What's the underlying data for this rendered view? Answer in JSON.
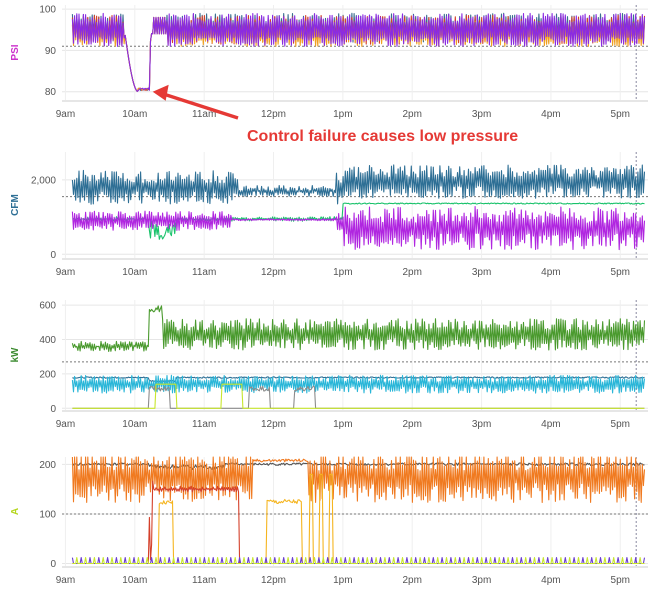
{
  "chart_data": [
    {
      "type": "line",
      "ylabel": "PSI",
      "ylabel_color": "#cc33cc",
      "ylim": [
        78,
        101
      ],
      "yticks": [
        "80",
        "90",
        "100"
      ],
      "ytick_values": [
        80,
        90,
        100
      ],
      "reference_line": 91,
      "xlim": [
        8.95,
        17.4
      ],
      "xticks": [
        "9am",
        "10am",
        "11am",
        "12pm",
        "1pm",
        "2pm",
        "3pm",
        "4pm",
        "5pm"
      ],
      "xtick_values": [
        9,
        10,
        11,
        12,
        13,
        14,
        15,
        16,
        17
      ],
      "annotation": "Control failure causes low pressure",
      "annotation_points_to": {
        "x": 10.2,
        "y": 80
      },
      "series": [
        {
          "color": "#3b6e8f",
          "kind": "psi",
          "base": 95.5,
          "amp": 3.5,
          "seed": 11
        },
        {
          "color": "#d4402a",
          "kind": "psi",
          "base": 95,
          "amp": 3.5,
          "seed": 12
        },
        {
          "color": "#f0a020",
          "kind": "psi",
          "base": 94,
          "amp": 3,
          "seed": 13
        },
        {
          "color": "#8a2be2",
          "kind": "psi",
          "base": 95,
          "amp": 4,
          "seed": 14
        }
      ]
    },
    {
      "type": "line",
      "ylabel": "CFM",
      "ylabel_color": "#2e6f95",
      "ylim": [
        -100,
        2750
      ],
      "yticks": [
        "0",
        "2,000"
      ],
      "ytick_values": [
        0,
        2000
      ],
      "reference_line": 1550,
      "xlim": [
        8.95,
        17.4
      ],
      "xticks": [
        "9am",
        "10am",
        "11am",
        "12pm",
        "1pm",
        "2pm",
        "3pm",
        "4pm",
        "5pm"
      ],
      "xtick_values": [
        9,
        10,
        11,
        12,
        13,
        14,
        15,
        16,
        17
      ],
      "series": [
        {
          "color": "#2e6f95",
          "kind": "cfm_blue",
          "seed": 21
        },
        {
          "color": "#19c26b",
          "kind": "cfm_green",
          "seed": 22
        },
        {
          "color": "#b026e0",
          "kind": "cfm_purple",
          "seed": 23
        }
      ]
    },
    {
      "type": "line",
      "ylabel": "kW",
      "ylabel_color": "#3a8a2e",
      "ylim": [
        -10,
        630
      ],
      "yticks": [
        "0",
        "200",
        "400",
        "600"
      ],
      "ytick_values": [
        0,
        200,
        400,
        600
      ],
      "reference_line": 270,
      "xlim": [
        8.95,
        17.4
      ],
      "xticks": [
        "9am",
        "10am",
        "11am",
        "12pm",
        "1pm",
        "2pm",
        "3pm",
        "4pm",
        "5pm"
      ],
      "xtick_values": [
        9,
        10,
        11,
        12,
        13,
        14,
        15,
        16,
        17
      ],
      "series": [
        {
          "color": "#4a9a2e",
          "kind": "kw_green",
          "seed": 31
        },
        {
          "color": "#2e6f95",
          "kind": "kw_blue",
          "seed": 32
        },
        {
          "color": "#29b6d8",
          "kind": "kw_cyan",
          "seed": 33
        },
        {
          "color": "#8c8c8c",
          "kind": "kw_gray",
          "seed": 34
        },
        {
          "color": "#c8e62e",
          "kind": "kw_lime",
          "seed": 35
        }
      ]
    },
    {
      "type": "line",
      "ylabel": "A",
      "ylabel_color": "#b5d61e",
      "ylim": [
        -5,
        215
      ],
      "yticks": [
        "0",
        "100",
        "200"
      ],
      "ytick_values": [
        0,
        100,
        200
      ],
      "reference_line": 100,
      "xlim": [
        8.95,
        17.4
      ],
      "xticks": [
        "9am",
        "10am",
        "11am",
        "12pm",
        "1pm",
        "2pm",
        "3pm",
        "4pm",
        "5pm"
      ],
      "xtick_values": [
        9,
        10,
        11,
        12,
        13,
        14,
        15,
        16,
        17
      ],
      "series": [
        {
          "color": "#555555",
          "kind": "a_gray",
          "seed": 41
        },
        {
          "color": "#f07a20",
          "kind": "a_orange",
          "seed": 42
        },
        {
          "color": "#d4402a",
          "kind": "a_red",
          "seed": 43
        },
        {
          "color": "#f5b520",
          "kind": "a_yellow",
          "seed": 44
        },
        {
          "color": "#6b3fd0",
          "kind": "a_purple",
          "seed": 45
        },
        {
          "color": "#c8e62e",
          "kind": "a_lime",
          "seed": 46
        }
      ]
    }
  ]
}
